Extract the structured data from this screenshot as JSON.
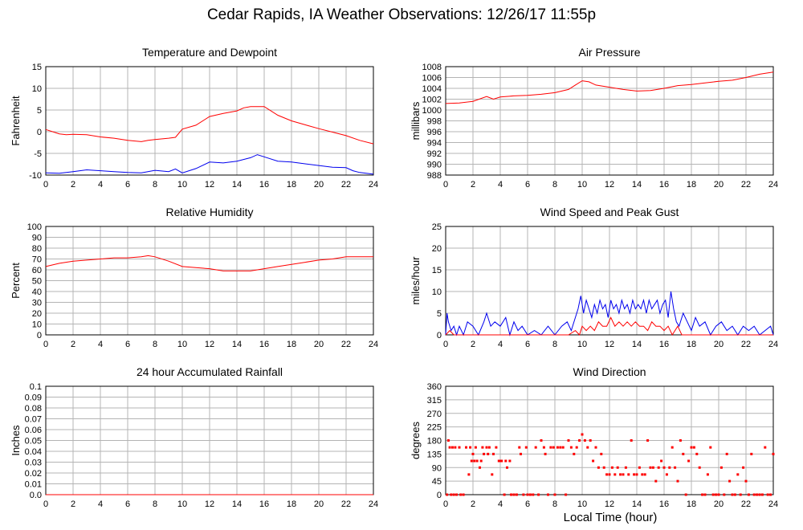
{
  "page": {
    "title": "Cedar Rapids, IA Weather Observations: 12/26/17 11:55p",
    "bottom_xlabel": "Local Time (hour)"
  },
  "colors": {
    "red": "#ff0000",
    "blue": "#0000ee",
    "grid": "#b4b4b4",
    "axis": "#000000"
  },
  "chart_data": [
    {
      "id": "temp",
      "type": "line",
      "title": "Temperature and Dewpoint",
      "ylabel": "Fahrenheit",
      "xlabel": "",
      "xlim": [
        0,
        24
      ],
      "xticks": [
        0,
        2,
        4,
        6,
        8,
        10,
        12,
        14,
        16,
        18,
        20,
        22,
        24
      ],
      "ylim": [
        -10,
        15
      ],
      "yticks": [
        -10,
        -5,
        0,
        5,
        10,
        15
      ],
      "grid": true,
      "series": [
        {
          "color": "red",
          "x": [
            0,
            0.5,
            1,
            1.5,
            2,
            3,
            4,
            5,
            6,
            7,
            7.5,
            8,
            9,
            9.5,
            10,
            11,
            12,
            13,
            14,
            14.5,
            15,
            15.5,
            16,
            17,
            18,
            19,
            20,
            21,
            22,
            23,
            24
          ],
          "y": [
            0.5,
            0,
            -0.5,
            -0.7,
            -0.6,
            -0.7,
            -1.2,
            -1.5,
            -2.0,
            -2.3,
            -2.0,
            -1.8,
            -1.5,
            -1.3,
            0.6,
            1.5,
            3.5,
            4.2,
            4.8,
            5.5,
            5.8,
            5.8,
            5.8,
            3.8,
            2.5,
            1.6,
            0.7,
            -0.1,
            -0.9,
            -2.0,
            -2.8
          ]
        },
        {
          "color": "blue",
          "x": [
            0,
            1,
            2,
            3,
            4,
            5,
            6,
            7,
            8,
            9,
            9.5,
            10,
            11,
            12,
            13,
            14,
            15,
            15.5,
            16,
            17,
            18,
            19,
            20,
            21,
            22,
            22.5,
            23,
            24
          ],
          "y": [
            -9.5,
            -9.6,
            -9.2,
            -8.8,
            -9.0,
            -9.2,
            -9.4,
            -9.5,
            -8.9,
            -9.2,
            -8.6,
            -9.5,
            -8.5,
            -7.0,
            -7.2,
            -6.8,
            -6.0,
            -5.3,
            -5.8,
            -6.8,
            -7.0,
            -7.4,
            -7.8,
            -8.2,
            -8.3,
            -9.0,
            -9.4,
            -9.8
          ]
        }
      ]
    },
    {
      "id": "pressure",
      "type": "line",
      "title": "Air Pressure",
      "ylabel": "millibars",
      "xlabel": "",
      "xlim": [
        0,
        24
      ],
      "xticks": [
        0,
        2,
        4,
        6,
        8,
        10,
        12,
        14,
        16,
        18,
        20,
        22,
        24
      ],
      "ylim": [
        988,
        1008
      ],
      "yticks": [
        988,
        990,
        992,
        994,
        996,
        998,
        1000,
        1002,
        1004,
        1006,
        1008
      ],
      "grid": true,
      "series": [
        {
          "color": "red",
          "x": [
            0,
            1,
            2,
            3,
            3.5,
            4,
            5,
            6,
            7,
            8,
            9,
            9.5,
            10,
            10.5,
            11,
            12,
            13,
            14,
            15,
            16,
            17,
            18,
            19,
            20,
            21,
            22,
            23,
            24
          ],
          "y": [
            1001.2,
            1001.3,
            1001.6,
            1002.5,
            1002.0,
            1002.4,
            1002.6,
            1002.7,
            1002.9,
            1003.2,
            1003.8,
            1004.6,
            1005.4,
            1005.2,
            1004.6,
            1004.2,
            1003.8,
            1003.5,
            1003.6,
            1004.0,
            1004.5,
            1004.7,
            1005.0,
            1005.3,
            1005.5,
            1006.0,
            1006.6,
            1007.0
          ]
        }
      ]
    },
    {
      "id": "rh",
      "type": "line",
      "title": "Relative Humidity",
      "ylabel": "Percent",
      "xlabel": "",
      "xlim": [
        0,
        24
      ],
      "xticks": [
        0,
        2,
        4,
        6,
        8,
        10,
        12,
        14,
        16,
        18,
        20,
        22,
        24
      ],
      "ylim": [
        0,
        100
      ],
      "yticks": [
        0,
        10,
        20,
        30,
        40,
        50,
        60,
        70,
        80,
        90,
        100
      ],
      "grid": true,
      "series": [
        {
          "color": "red",
          "x": [
            0,
            1,
            2,
            3,
            4,
            5,
            6,
            7,
            7.5,
            8,
            9,
            10,
            11,
            12,
            13,
            14,
            15,
            16,
            17,
            18,
            19,
            20,
            21,
            22,
            23,
            24
          ],
          "y": [
            63,
            66,
            68,
            69,
            70,
            71,
            71,
            72,
            73,
            72,
            68,
            63,
            62,
            61,
            59,
            59,
            59,
            61,
            63,
            65,
            67,
            69,
            70,
            72,
            72,
            72
          ]
        }
      ]
    },
    {
      "id": "wind",
      "type": "line",
      "title": "Wind Speed and Peak Gust",
      "ylabel": "miles/hour",
      "xlabel": "",
      "xlim": [
        0,
        24
      ],
      "xticks": [
        0,
        2,
        4,
        6,
        8,
        10,
        12,
        14,
        16,
        18,
        20,
        22,
        24
      ],
      "ylim": [
        0,
        25
      ],
      "yticks": [
        0,
        5,
        10,
        15,
        20,
        25
      ],
      "grid": true,
      "series": [
        {
          "color": "blue",
          "x": [
            0,
            0.1,
            0.2,
            0.4,
            0.6,
            0.8,
            1.0,
            1.3,
            1.6,
            2.0,
            2.4,
            2.8,
            3.0,
            3.3,
            3.6,
            4.0,
            4.4,
            4.7,
            5.0,
            5.3,
            5.6,
            6.0,
            6.5,
            7.0,
            7.5,
            8.0,
            8.5,
            8.9,
            9.2,
            9.5,
            9.7,
            9.9,
            10.1,
            10.3,
            10.5,
            10.7,
            10.9,
            11.1,
            11.3,
            11.5,
            11.7,
            11.9,
            12.1,
            12.3,
            12.5,
            12.7,
            12.9,
            13.1,
            13.3,
            13.5,
            13.7,
            13.9,
            14.1,
            14.3,
            14.5,
            14.7,
            14.9,
            15.1,
            15.3,
            15.5,
            15.7,
            15.9,
            16.1,
            16.3,
            16.5,
            16.7,
            16.9,
            17.1,
            17.4,
            17.7,
            18.0,
            18.3,
            18.6,
            19.0,
            19.4,
            19.8,
            20.2,
            20.6,
            21.0,
            21.4,
            21.8,
            22.2,
            22.6,
            23.0,
            23.4,
            23.8,
            24.0
          ],
          "y": [
            0,
            5,
            3,
            1,
            2,
            0,
            2,
            0,
            3,
            2,
            0,
            3,
            5,
            2,
            3,
            2,
            4,
            0,
            3,
            1,
            2,
            0,
            1,
            0,
            2,
            0,
            2,
            3,
            1,
            4,
            6,
            9,
            5,
            8,
            6,
            4,
            7,
            5,
            8,
            6,
            7,
            4,
            8,
            6,
            7,
            5,
            8,
            6,
            7,
            5,
            8,
            6,
            7,
            6,
            8,
            5,
            8,
            6,
            7,
            8,
            5,
            7,
            8,
            4,
            10,
            6,
            3,
            2,
            5,
            3,
            1,
            4,
            2,
            3,
            0,
            2,
            3,
            1,
            2,
            0,
            2,
            1,
            2,
            0,
            1,
            2,
            0
          ]
        },
        {
          "color": "red",
          "x": [
            0,
            0.3,
            0.6,
            1.0,
            2.0,
            4.0,
            6.0,
            8.0,
            9.0,
            9.5,
            9.8,
            10.0,
            10.3,
            10.6,
            10.9,
            11.2,
            11.5,
            11.8,
            12.1,
            12.4,
            12.7,
            13.0,
            13.3,
            13.6,
            13.9,
            14.2,
            14.5,
            14.8,
            15.1,
            15.4,
            15.7,
            16.0,
            16.3,
            16.6,
            17.0,
            17.3,
            17.6,
            24.0
          ],
          "y": [
            0,
            1,
            0,
            0,
            0,
            0,
            0,
            0,
            0,
            1,
            0,
            2,
            1,
            2,
            1,
            3,
            2,
            2,
            4,
            2,
            3,
            2,
            3,
            2,
            3,
            2,
            2,
            1,
            3,
            2,
            2,
            1,
            2,
            0,
            2,
            0,
            0,
            0
          ]
        }
      ]
    },
    {
      "id": "rain",
      "type": "line",
      "title": "24 hour Accumulated Rainfall",
      "ylabel": "Inches",
      "xlabel": "",
      "xlim": [
        0,
        24
      ],
      "xticks": [
        0,
        2,
        4,
        6,
        8,
        10,
        12,
        14,
        16,
        18,
        20,
        22,
        24
      ],
      "ylim": [
        0,
        0.1
      ],
      "yticks": [
        0.0,
        0.01,
        0.02,
        0.03,
        0.04,
        0.05,
        0.06,
        0.07,
        0.08,
        0.09,
        0.1
      ],
      "ytick_labels": [
        "0.0",
        "0.01",
        "0.02",
        "0.03",
        "0.04",
        "0.05",
        "0.06",
        "0.07",
        "0.08",
        "0.09",
        "0.1"
      ],
      "grid": true,
      "series": [
        {
          "color": "red",
          "x": [
            0,
            24
          ],
          "y": [
            0,
            0
          ]
        }
      ]
    },
    {
      "id": "dir",
      "type": "scatter",
      "title": "Wind Direction",
      "ylabel": "degrees",
      "xlabel": "Local Time (hour)",
      "xlim": [
        0,
        24
      ],
      "xticks": [
        0,
        2,
        4,
        6,
        8,
        10,
        12,
        14,
        16,
        18,
        20,
        22,
        24
      ],
      "ylim": [
        0,
        360
      ],
      "yticks": [
        0,
        45,
        90,
        135,
        180,
        225,
        270,
        315,
        360
      ],
      "grid": true,
      "series": [
        {
          "color": "red",
          "x": [
            0.1,
            0.2,
            0.3,
            0.4,
            0.5,
            0.6,
            0.7,
            0.8,
            1.0,
            1.1,
            1.3,
            1.5,
            1.7,
            1.8,
            1.9,
            2.0,
            2.1,
            2.2,
            2.3,
            2.5,
            2.6,
            2.7,
            2.8,
            3.0,
            3.1,
            3.2,
            3.4,
            3.5,
            3.7,
            3.9,
            4.0,
            4.1,
            4.3,
            4.4,
            4.5,
            4.7,
            4.8,
            5.0,
            5.2,
            5.4,
            5.5,
            5.7,
            5.9,
            6.0,
            6.2,
            6.4,
            6.6,
            6.8,
            7.0,
            7.2,
            7.3,
            7.5,
            7.7,
            7.9,
            8.0,
            8.2,
            8.4,
            8.6,
            8.8,
            9.0,
            9.2,
            9.4,
            9.6,
            9.8,
            10.0,
            10.2,
            10.4,
            10.6,
            10.8,
            11.0,
            11.2,
            11.4,
            11.6,
            11.8,
            12.0,
            12.2,
            12.4,
            12.6,
            12.8,
            13.0,
            13.2,
            13.4,
            13.6,
            13.8,
            14.0,
            14.2,
            14.4,
            14.6,
            14.8,
            15.0,
            15.2,
            15.4,
            15.6,
            15.8,
            16.0,
            16.2,
            16.4,
            16.6,
            16.8,
            17.0,
            17.2,
            17.4,
            17.6,
            17.8,
            18.0,
            18.2,
            18.4,
            18.6,
            18.8,
            19.0,
            19.2,
            19.4,
            19.6,
            19.8,
            20.0,
            20.2,
            20.4,
            20.6,
            20.8,
            21.0,
            21.2,
            21.4,
            21.6,
            21.8,
            22.0,
            22.2,
            22.4,
            22.6,
            22.8,
            23.0,
            23.2,
            23.4,
            23.6,
            23.8,
            24.0
          ],
          "y": [
            0,
            180,
            157,
            0,
            157,
            0,
            157,
            0,
            157,
            0,
            0,
            157,
            67,
            157,
            112,
            135,
            112,
            157,
            112,
            90,
            112,
            157,
            135,
            157,
            135,
            157,
            67,
            135,
            157,
            112,
            112,
            112,
            0,
            112,
            90,
            112,
            0,
            0,
            0,
            157,
            135,
            0,
            157,
            0,
            0,
            0,
            157,
            0,
            180,
            157,
            135,
            0,
            157,
            157,
            0,
            157,
            157,
            157,
            0,
            180,
            157,
            135,
            157,
            180,
            200,
            180,
            157,
            180,
            112,
            157,
            90,
            135,
            90,
            67,
            67,
            90,
            67,
            90,
            67,
            67,
            90,
            67,
            180,
            67,
            67,
            90,
            67,
            67,
            180,
            90,
            90,
            45,
            90,
            112,
            90,
            67,
            90,
            157,
            90,
            45,
            180,
            135,
            0,
            112,
            157,
            157,
            135,
            90,
            0,
            0,
            67,
            157,
            0,
            0,
            0,
            90,
            0,
            135,
            45,
            0,
            0,
            67,
            0,
            90,
            45,
            0,
            135,
            0,
            0,
            0,
            0,
            157,
            0,
            0,
            135
          ]
        }
      ]
    }
  ]
}
